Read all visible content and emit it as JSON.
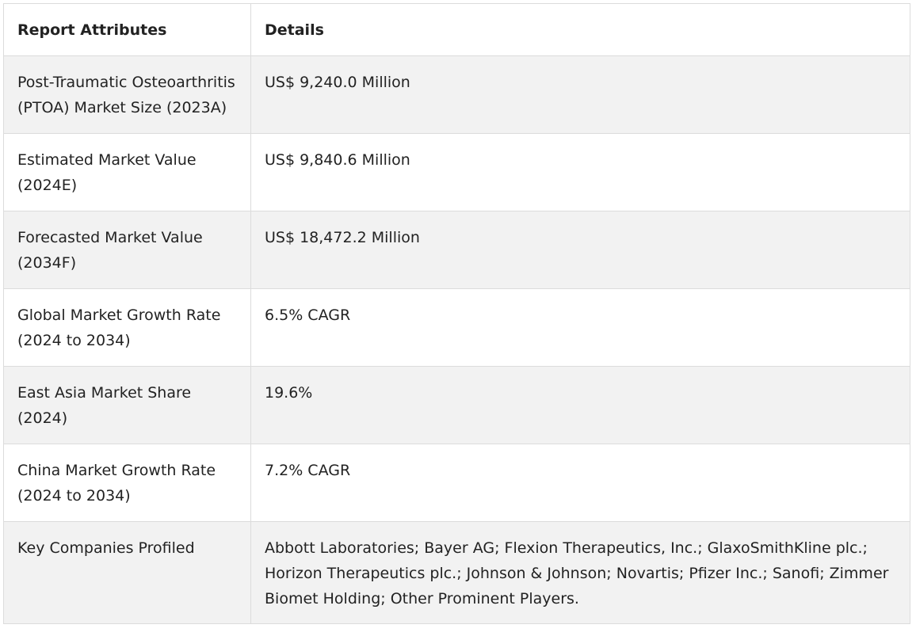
{
  "table": {
    "headers": [
      "Report Attributes",
      "Details"
    ],
    "rows": [
      {
        "attribute": "Post-Traumatic Osteoarthritis (PTOA) Market Size (2023A)",
        "details": "US$ 9,240.0 Million"
      },
      {
        "attribute": "Estimated Market Value (2024E)",
        "details": "US$ 9,840.6 Million"
      },
      {
        "attribute": "Forecasted Market Value (2034F)",
        "details": "US$ 18,472.2 Million"
      },
      {
        "attribute": "Global Market Growth Rate (2024 to 2034)",
        "details": "6.5% CAGR"
      },
      {
        "attribute": "East Asia Market Share (2024)",
        "details": "19.6%"
      },
      {
        "attribute": "China Market Growth Rate (2024 to 2034)",
        "details": "7.2% CAGR"
      },
      {
        "attribute": "Key Companies Profiled",
        "details": "Abbott Laboratories; Bayer AG; Flexion Therapeutics, Inc.; GlaxoSmithKline plc.; Horizon Therapeutics plc.; Johnson & Johnson; Novartis; Pfizer Inc.; Sanofi; Zimmer Biomet Holding; Other Prominent Players."
      }
    ]
  }
}
